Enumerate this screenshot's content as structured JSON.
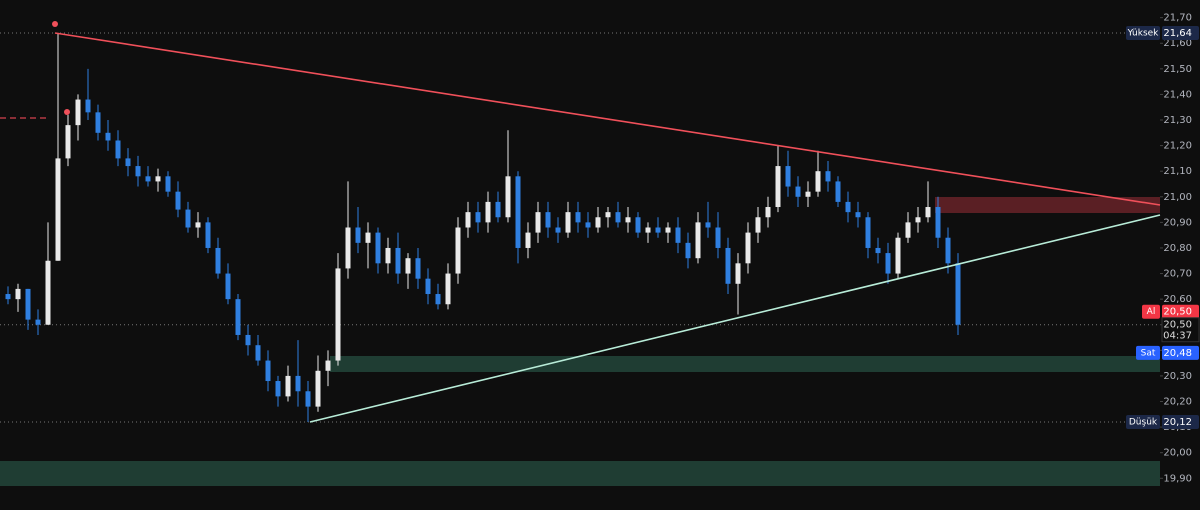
{
  "chart_data": {
    "type": "candlestick",
    "up_color": "#e8e8e8",
    "down_color": "#2f7fe0",
    "ylim": [
      19.776,
      21.769
    ],
    "yticks": [
      {
        "value": 21.7,
        "label": "21,70"
      },
      {
        "value": 21.6,
        "label": "21,60"
      },
      {
        "value": 21.5,
        "label": "21,50"
      },
      {
        "value": 21.4,
        "label": "21,40"
      },
      {
        "value": 21.3,
        "label": "21,30"
      },
      {
        "value": 21.2,
        "label": "21,20"
      },
      {
        "value": 21.1,
        "label": "21,10"
      },
      {
        "value": 21.0,
        "label": "21,00"
      },
      {
        "value": 20.9,
        "label": "20,90"
      },
      {
        "value": 20.8,
        "label": "20,80"
      },
      {
        "value": 20.7,
        "label": "20,70"
      },
      {
        "value": 20.6,
        "label": "20,60"
      },
      {
        "value": 20.5,
        "label": "20,50"
      },
      {
        "value": 20.4,
        "label": "20,40"
      },
      {
        "value": 20.3,
        "label": "20,30"
      },
      {
        "value": 20.2,
        "label": "20,20"
      },
      {
        "value": 20.1,
        "label": "20,10"
      },
      {
        "value": 20.0,
        "label": "20,00"
      },
      {
        "value": 19.9,
        "label": "19,90"
      }
    ],
    "open": [
      20.62,
      20.6,
      20.64,
      20.52,
      20.5,
      20.75,
      21.15,
      21.28,
      21.38,
      21.33,
      21.25,
      21.22,
      21.15,
      21.12,
      21.08,
      21.06,
      21.08,
      21.02,
      20.95,
      20.88,
      20.9,
      20.8,
      20.7,
      20.6,
      20.46,
      20.42,
      20.36,
      20.28,
      20.22,
      20.3,
      20.24,
      20.18,
      20.32,
      20.36,
      20.72,
      20.88,
      20.82,
      20.86,
      20.74,
      20.8,
      20.7,
      20.76,
      20.68,
      20.62,
      20.58,
      20.7,
      20.88,
      20.94,
      20.9,
      20.98,
      20.92,
      21.08,
      20.8,
      20.86,
      20.94,
      20.88,
      20.86,
      20.94,
      20.9,
      20.88,
      20.92,
      20.94,
      20.9,
      20.92,
      20.86,
      20.88,
      20.86,
      20.88,
      20.82,
      20.76,
      20.9,
      20.88,
      20.8,
      20.66,
      20.74,
      20.86,
      20.92,
      20.96,
      21.12,
      21.04,
      21.0,
      21.02,
      21.1,
      21.06,
      20.98,
      20.94,
      20.92,
      20.8,
      20.78,
      20.7,
      20.84,
      20.9,
      20.92,
      20.96,
      20.84,
      20.74
    ],
    "high": [
      20.65,
      20.66,
      20.64,
      20.56,
      20.9,
      21.64,
      21.32,
      21.4,
      21.5,
      21.36,
      21.3,
      21.26,
      21.19,
      21.16,
      21.12,
      21.11,
      21.1,
      21.06,
      20.98,
      20.94,
      20.92,
      20.84,
      20.74,
      20.62,
      20.5,
      20.46,
      20.4,
      20.3,
      20.34,
      20.44,
      20.28,
      20.38,
      20.4,
      20.78,
      21.06,
      20.96,
      20.9,
      20.88,
      20.84,
      20.86,
      20.78,
      20.8,
      20.72,
      20.66,
      20.74,
      20.92,
      20.98,
      20.98,
      21.02,
      21.02,
      21.26,
      21.1,
      20.9,
      20.98,
      20.98,
      20.92,
      20.98,
      20.98,
      20.94,
      20.96,
      20.96,
      20.98,
      20.96,
      20.94,
      20.9,
      20.92,
      20.9,
      20.92,
      20.86,
      20.94,
      20.98,
      20.94,
      20.84,
      20.78,
      20.9,
      20.96,
      21.0,
      21.2,
      21.18,
      21.08,
      21.06,
      21.18,
      21.14,
      21.08,
      21.02,
      20.98,
      20.94,
      20.84,
      20.82,
      20.86,
      20.94,
      20.96,
      21.06,
      21.0,
      20.88,
      20.78
    ],
    "low": [
      20.58,
      20.55,
      20.48,
      20.46,
      20.5,
      20.75,
      21.12,
      21.22,
      21.3,
      21.22,
      21.18,
      21.12,
      21.08,
      21.04,
      21.04,
      21.02,
      21.0,
      20.92,
      20.86,
      20.84,
      20.78,
      20.68,
      20.58,
      20.44,
      20.38,
      20.34,
      20.24,
      20.18,
      20.2,
      20.18,
      20.12,
      20.16,
      20.26,
      20.34,
      20.68,
      20.78,
      20.72,
      20.7,
      20.7,
      20.66,
      20.64,
      20.64,
      20.58,
      20.56,
      20.56,
      20.66,
      20.84,
      20.86,
      20.86,
      20.9,
      20.9,
      20.74,
      20.76,
      20.82,
      20.84,
      20.82,
      20.84,
      20.86,
      20.84,
      20.86,
      20.88,
      20.88,
      20.86,
      20.84,
      20.82,
      20.84,
      20.82,
      20.78,
      20.72,
      20.74,
      20.84,
      20.76,
      20.62,
      20.54,
      20.7,
      20.82,
      20.88,
      20.94,
      21.0,
      20.96,
      20.96,
      21.0,
      21.02,
      20.96,
      20.9,
      20.88,
      20.76,
      20.74,
      20.66,
      20.68,
      20.82,
      20.86,
      20.9,
      20.8,
      20.7,
      20.46
    ],
    "close": [
      20.6,
      20.64,
      20.52,
      20.5,
      20.75,
      21.15,
      21.28,
      21.38,
      21.33,
      21.25,
      21.22,
      21.15,
      21.12,
      21.08,
      21.06,
      21.08,
      21.02,
      20.95,
      20.88,
      20.9,
      20.8,
      20.7,
      20.6,
      20.46,
      20.42,
      20.36,
      20.28,
      20.22,
      20.3,
      20.24,
      20.18,
      20.32,
      20.36,
      20.72,
      20.88,
      20.82,
      20.86,
      20.74,
      20.8,
      20.7,
      20.76,
      20.68,
      20.62,
      20.58,
      20.7,
      20.88,
      20.94,
      20.9,
      20.98,
      20.92,
      21.08,
      20.8,
      20.86,
      20.94,
      20.88,
      20.86,
      20.94,
      20.9,
      20.88,
      20.92,
      20.94,
      20.9,
      20.92,
      20.86,
      20.88,
      20.86,
      20.88,
      20.82,
      20.76,
      20.9,
      20.88,
      20.8,
      20.66,
      20.74,
      20.86,
      20.92,
      20.96,
      21.12,
      21.04,
      21.0,
      21.02,
      21.1,
      21.06,
      20.98,
      20.94,
      20.92,
      20.8,
      20.78,
      20.7,
      20.84,
      20.9,
      20.92,
      20.96,
      20.84,
      20.74,
      20.5
    ],
    "price_lines": [
      {
        "name": "Yüksek",
        "value": 21.64,
        "label": "21,64"
      },
      {
        "name": "Düşük",
        "value": 20.12,
        "label": "20,12"
      }
    ],
    "bid_ask": [
      {
        "name": "Al",
        "value": 20.5,
        "label": "20,50",
        "color": "#f23645"
      },
      {
        "name": "Sat",
        "value": 20.48,
        "label": "20,48",
        "color": "#2962ff"
      }
    ],
    "last_price": {
      "value": 20.5,
      "label": "20,50"
    },
    "countdown": "04:37"
  }
}
